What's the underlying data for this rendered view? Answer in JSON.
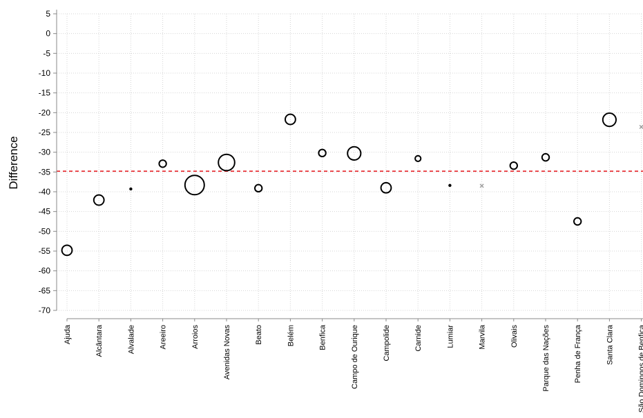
{
  "chart_data": {
    "type": "scatter",
    "ylabel": "Difference",
    "ylim": [
      -70,
      5
    ],
    "yticks": [
      5,
      0,
      -5,
      -10,
      -15,
      -20,
      -25,
      -30,
      -35,
      -40,
      -45,
      -50,
      -55,
      -60,
      -65,
      -70
    ],
    "grid": true,
    "categories": [
      "Ajuda",
      "Alcântara",
      "Alvalade",
      "Areeiro",
      "Arroios",
      "Avenidas Novas",
      "Beato",
      "Belém",
      "Benfica",
      "Campo de Ourique",
      "Campolide",
      "Carnide",
      "Lumiar",
      "Marvila",
      "Olivais",
      "Parque das Nações",
      "Penha de França",
      "Santa Clara",
      "São Domingos de Benfica"
    ],
    "points": [
      {
        "category": "Ajuda",
        "y": -54.8,
        "size": 2,
        "marker": "circle"
      },
      {
        "category": "Alcântara",
        "y": -42.1,
        "size": 2,
        "marker": "circle"
      },
      {
        "category": "Alvalade",
        "y": -39.3,
        "size": 0,
        "marker": "dot"
      },
      {
        "category": "Areeiro",
        "y": -32.9,
        "size": 1,
        "marker": "circle"
      },
      {
        "category": "Arroios",
        "y": -38.3,
        "size": 5,
        "marker": "circle"
      },
      {
        "category": "Avenidas Novas",
        "y": -32.6,
        "size": 4,
        "marker": "circle"
      },
      {
        "category": "Beato",
        "y": -39.1,
        "size": 1,
        "marker": "circle"
      },
      {
        "category": "Belém",
        "y": -21.7,
        "size": 2,
        "marker": "circle"
      },
      {
        "category": "Benfica",
        "y": -30.2,
        "size": 1,
        "marker": "circle"
      },
      {
        "category": "Campo de Ourique",
        "y": -30.3,
        "size": 3,
        "marker": "circle"
      },
      {
        "category": "Campolide",
        "y": -39.0,
        "size": 2,
        "marker": "circle"
      },
      {
        "category": "Carnide",
        "y": -31.6,
        "size": 0.5,
        "marker": "circle"
      },
      {
        "category": "Lumiar",
        "y": -38.4,
        "size": 0,
        "marker": "dot"
      },
      {
        "category": "Marvila",
        "y": -38.5,
        "size": 1,
        "marker": "cross"
      },
      {
        "category": "Olivais",
        "y": -33.4,
        "size": 1,
        "marker": "circle"
      },
      {
        "category": "Parque das Nações",
        "y": -31.3,
        "size": 1,
        "marker": "circle"
      },
      {
        "category": "Penha de França",
        "y": -47.5,
        "size": 1,
        "marker": "circle"
      },
      {
        "category": "Santa Clara",
        "y": -21.8,
        "size": 3,
        "marker": "circle"
      },
      {
        "category": "São Domingos de Benfica",
        "y": -23.6,
        "size": 1,
        "marker": "cross"
      }
    ],
    "reference_line": {
      "y": -34.8,
      "color": "#e8262b",
      "style": "dashed"
    },
    "colors": {
      "marker": "#000000",
      "cross_marker": "#9e9e9e",
      "grid": "#d4d4d4",
      "axis": "#888888"
    }
  }
}
